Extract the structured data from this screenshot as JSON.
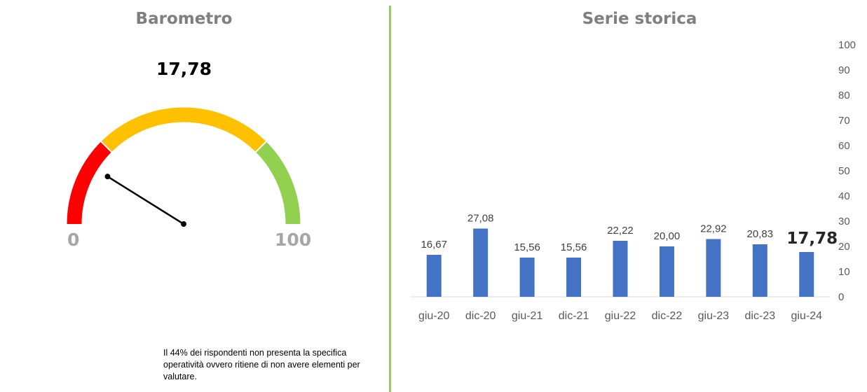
{
  "barometer": {
    "title": "Barometro",
    "value": 17.78,
    "value_label": "17,78",
    "min_label": "0",
    "max_label": "100",
    "min": 0,
    "max": 100,
    "bands": [
      {
        "from": 0,
        "to": 25,
        "color": "#ff0000"
      },
      {
        "from": 25,
        "to": 75,
        "color": "#ffc000"
      },
      {
        "from": 75,
        "to": 100,
        "color": "#92d050"
      }
    ],
    "note": "Il 44% dei rispondenti non presenta la specifica operatività ovvero ritiene di non avere elementi per valutare."
  },
  "series": {
    "title": "Serie storica"
  },
  "chart_data": {
    "type": "bar",
    "title": "Serie storica",
    "categories": [
      "giu-20",
      "dic-20",
      "giu-21",
      "dic-21",
      "giu-22",
      "dic-22",
      "giu-23",
      "dic-23",
      "giu-24"
    ],
    "values": [
      16.67,
      27.08,
      15.56,
      15.56,
      22.22,
      20.0,
      22.92,
      20.83,
      17.78
    ],
    "value_labels": [
      "16,67",
      "27,08",
      "15,56",
      "15,56",
      "22,22",
      "20,00",
      "22,92",
      "20,83",
      "17,78"
    ],
    "ylim": [
      0,
      100
    ],
    "yticks": [
      0,
      10,
      20,
      30,
      40,
      50,
      60,
      70,
      80,
      90,
      100
    ],
    "y_axis_position": "right",
    "grid": false,
    "bar_color": "#4472c4"
  },
  "colors": {
    "divider": "#92d050",
    "title": "#7f7f7f"
  }
}
